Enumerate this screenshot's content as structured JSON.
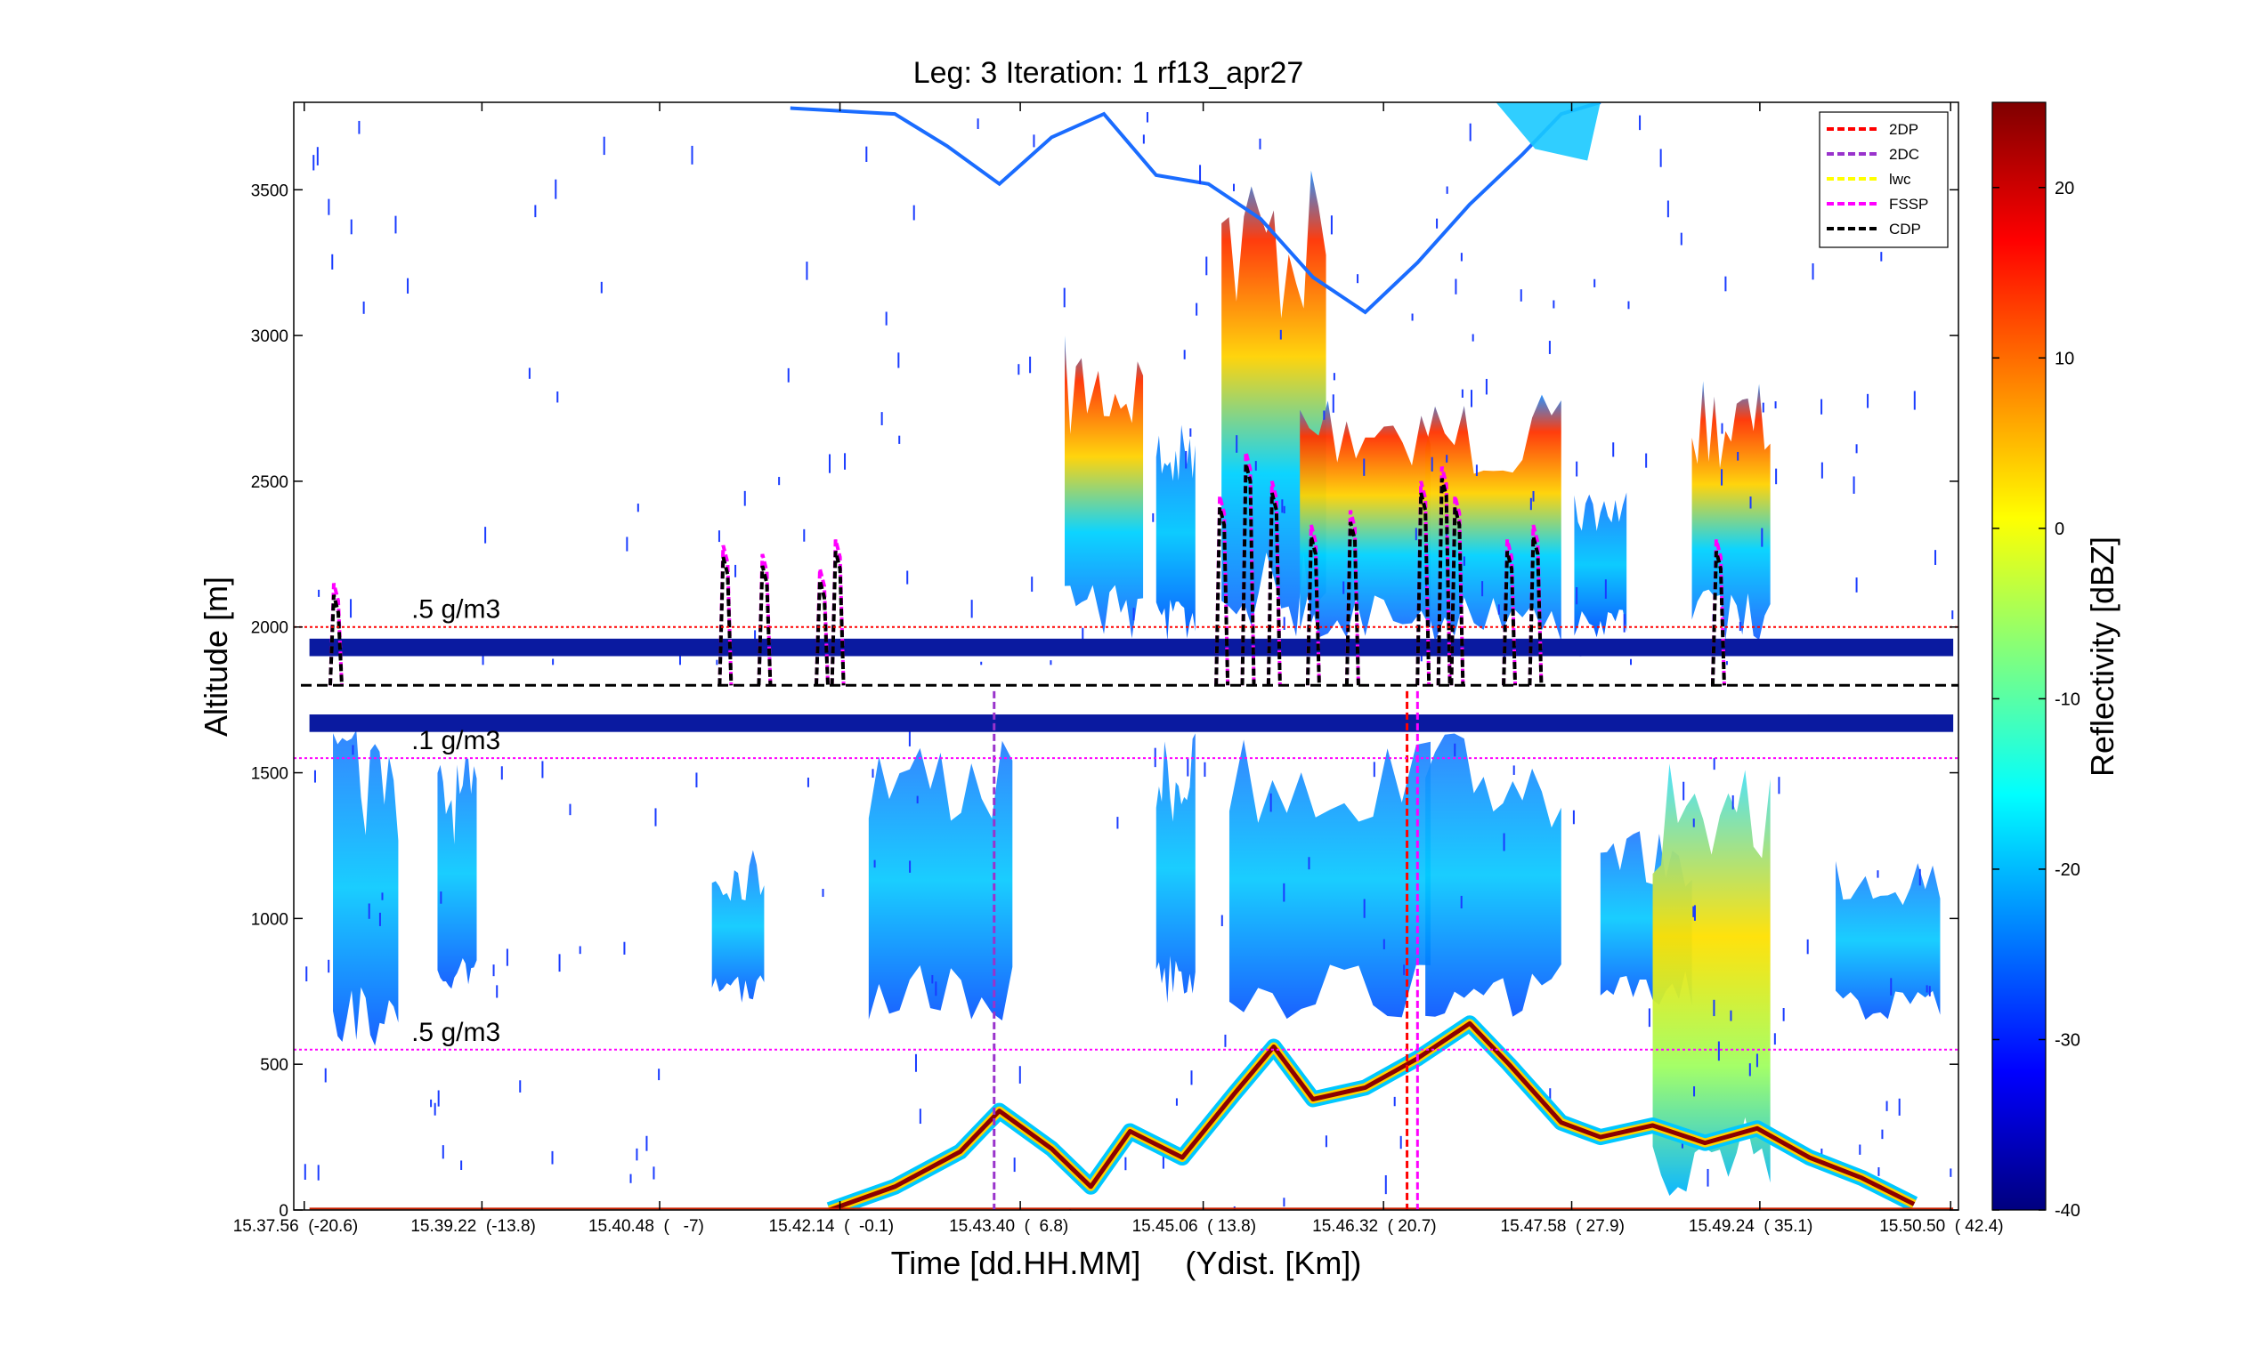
{
  "chart_data": {
    "type": "heatmap",
    "title": "Leg: 3  Iteration: 1  rf13_apr27",
    "xlabel": "Time [dd.HH.MM]     (Ydist. [Km])",
    "ylabel": "Altitude [m]",
    "colorbar_label": "Reflectivity [dBZ]",
    "x_tick_labels": [
      "15.37.56  (-20.6)",
      "15.39.22  (-13.8)",
      "15.40.48  (   -7)",
      "15.42.14  (  -0.1)",
      "15.43.40  (  6.8)",
      "15.45.06  ( 13.8)",
      "15.46.32  ( 20.7)",
      "15.47.58  ( 27.9)",
      "15.49.24  ( 35.1)",
      "15.50.50  ( 42.4)"
    ],
    "x_tick_ydist_km": [
      -20.6,
      -13.8,
      -7,
      -0.1,
      6.8,
      13.8,
      20.7,
      27.9,
      35.1,
      42.4
    ],
    "xlim_km": [
      -21.0,
      42.7
    ],
    "ylim": [
      0,
      3800
    ],
    "y_ticks": [
      0,
      500,
      1000,
      1500,
      2000,
      2500,
      3000,
      3500
    ],
    "colorbar_ticks": [
      -40,
      -30,
      -20,
      -10,
      0,
      10,
      20
    ],
    "colorbar_range": [
      -40,
      25
    ],
    "colormap": "jet",
    "grid": false,
    "legend_position": "top-right",
    "legend": [
      {
        "label": "2DP",
        "color": "#ff0000"
      },
      {
        "label": "2DC",
        "color": "#9933cc"
      },
      {
        "label": "lwc",
        "color": "#ffff00"
      },
      {
        "label": "FSSP",
        "color": "#ff00ff"
      },
      {
        "label": "CDP",
        "color": "#000000"
      }
    ],
    "reference_lines": [
      {
        "label": ".5 g/m3",
        "altitude": 2000,
        "color": "#ff0000"
      },
      {
        "label": ".1 g/m3",
        "altitude": 1550,
        "color": "#ff00ff"
      },
      {
        "label": ".5 g/m3",
        "altitude": 550,
        "color": "#ff00ff"
      }
    ],
    "flight_altitude": 1800,
    "surface_echo": [
      {
        "km": -0.5,
        "alt": 0
      },
      {
        "km": 2.0,
        "alt": 80
      },
      {
        "km": 4.5,
        "alt": 200
      },
      {
        "km": 6.0,
        "alt": 340
      },
      {
        "km": 8.0,
        "alt": 210
      },
      {
        "km": 9.5,
        "alt": 80
      },
      {
        "km": 11.0,
        "alt": 270
      },
      {
        "km": 13.0,
        "alt": 180
      },
      {
        "km": 15.0,
        "alt": 400
      },
      {
        "km": 16.5,
        "alt": 560
      },
      {
        "km": 18.0,
        "alt": 380
      },
      {
        "km": 20.0,
        "alt": 420
      },
      {
        "km": 22.0,
        "alt": 520
      },
      {
        "km": 24.0,
        "alt": 640
      },
      {
        "km": 25.5,
        "alt": 500
      },
      {
        "km": 27.5,
        "alt": 300
      },
      {
        "km": 29.0,
        "alt": 250
      },
      {
        "km": 31.0,
        "alt": 290
      },
      {
        "km": 33.0,
        "alt": 230
      },
      {
        "km": 35.0,
        "alt": 280
      },
      {
        "km": 37.0,
        "alt": 180
      },
      {
        "km": 39.0,
        "alt": 110
      },
      {
        "km": 41.0,
        "alt": 20
      }
    ]
  }
}
